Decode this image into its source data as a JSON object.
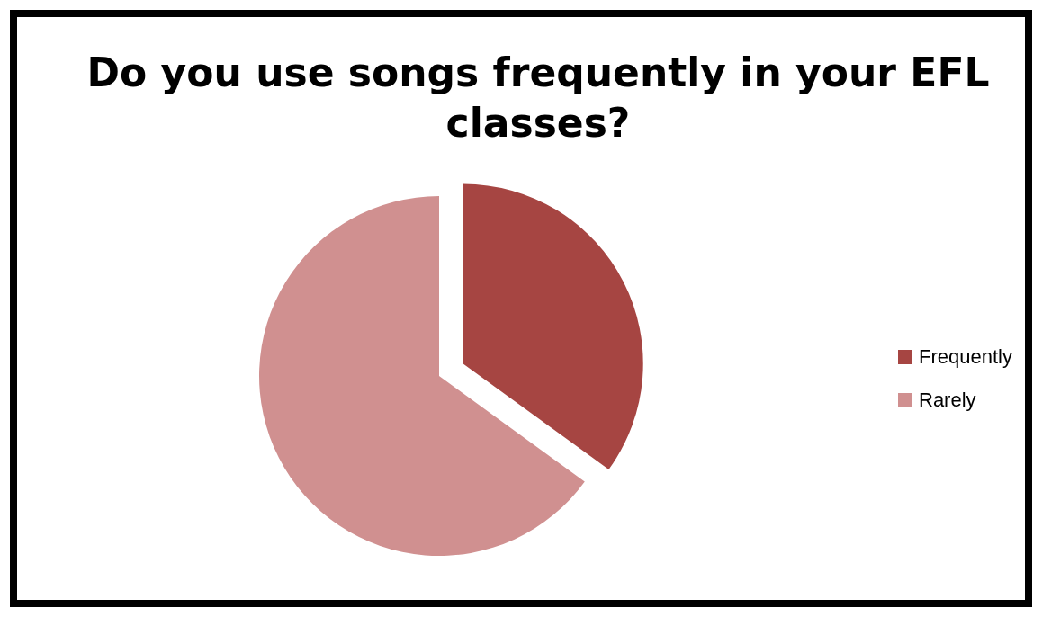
{
  "chart_data": {
    "type": "pie",
    "title": "Do you use songs frequently in your EFL classes?",
    "categories": [
      "Frequently",
      "Rarely"
    ],
    "values": [
      35,
      65
    ],
    "colors": [
      "#a64542",
      "#d09090"
    ],
    "legend": "right"
  }
}
